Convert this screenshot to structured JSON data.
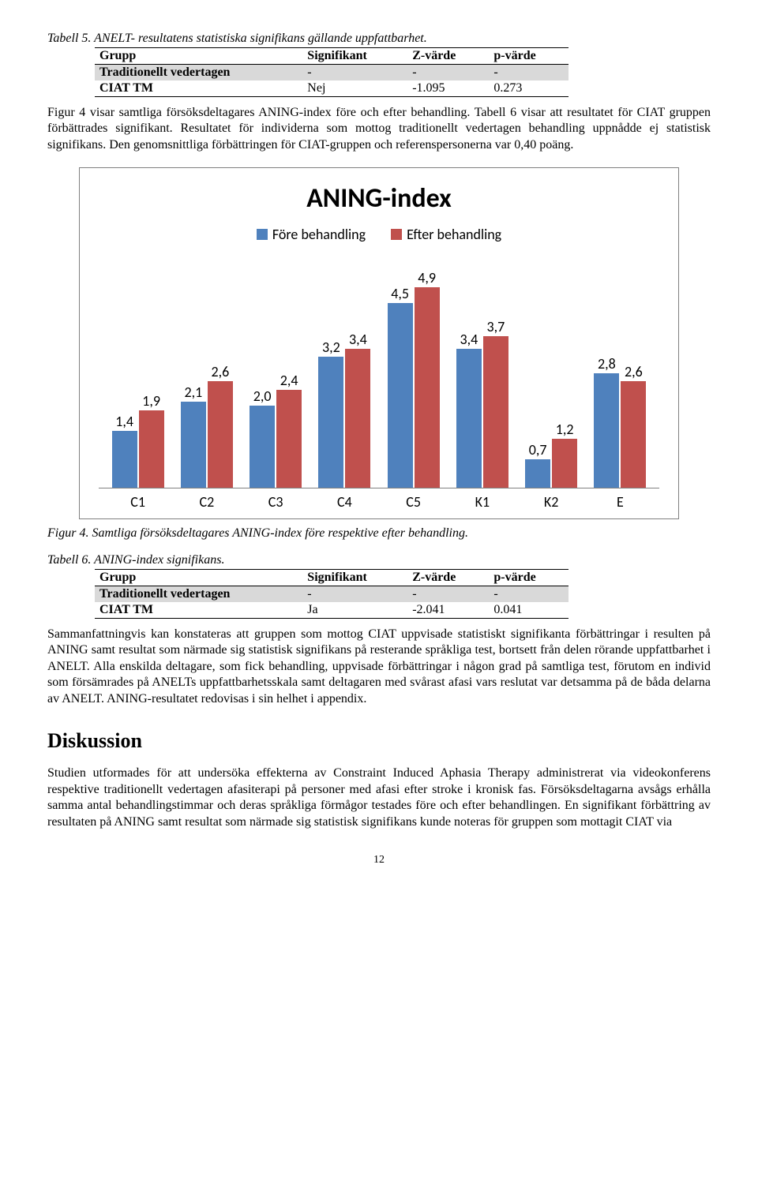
{
  "table5": {
    "caption": "Tabell 5. ANELT- resultatens statistiska signifikans gällande uppfattbarhet.",
    "columns": [
      "Grupp",
      "Signifikant",
      "Z-värde",
      "p-värde"
    ],
    "rows": [
      [
        "Traditionellt vedertagen",
        "-",
        "-",
        "-"
      ],
      [
        "CIAT TM",
        "Nej",
        "-1.095",
        "0.273"
      ]
    ]
  },
  "para1": "Figur 4 visar samtliga försöksdeltagares ANING-index före och efter behandling. Tabell 6 visar att resultatet för CIAT gruppen förbättrades signifikant. Resultatet för individerna som mottog traditionellt vedertagen behandling uppnådde ej statistisk signifikans. Den genomsnittliga förbättringen för CIAT-gruppen och referenspersonerna var 0,40 poäng.",
  "chart": {
    "title": "ANING-index",
    "legend": [
      "Före behandling",
      "Efter behandling"
    ],
    "colors": [
      "#4f81bd",
      "#c0504d"
    ],
    "ymax": 5.0,
    "categories": [
      "C1",
      "C2",
      "C3",
      "C4",
      "C5",
      "K1",
      "K2",
      "E"
    ],
    "series_before": [
      1.4,
      2.1,
      2.0,
      3.2,
      4.5,
      3.4,
      0.7,
      2.8
    ],
    "series_after": [
      1.9,
      2.6,
      2.4,
      3.4,
      4.9,
      3.7,
      1.2,
      2.6
    ],
    "labels_before": [
      "1,4",
      "2,1",
      "2,0",
      "3,2",
      "4,5",
      "3,4",
      "0,7",
      "2,8"
    ],
    "labels_after": [
      "1,9",
      "2,6",
      "2,4",
      "3,4",
      "4,9",
      "3,7",
      "1,2",
      "2,6"
    ]
  },
  "fig4_caption": "Figur 4. Samtliga försöksdeltagares ANING-index före respektive efter behandling.",
  "table6": {
    "caption": "Tabell 6. ANING-index signifikans.",
    "columns": [
      "Grupp",
      "Signifikant",
      "Z-värde",
      "p-värde"
    ],
    "rows": [
      [
        "Traditionellt vedertagen",
        "-",
        "-",
        "-"
      ],
      [
        "CIAT TM",
        "Ja",
        "-2.041",
        "0.041"
      ]
    ]
  },
  "para2": "Sammanfattningvis kan konstateras att gruppen som mottog CIAT uppvisade statistiskt signifikanta förbättringar i resulten på ANING samt resultat som närmade sig statistisk signifikans på resterande språkliga test, bortsett från delen rörande uppfattbarhet i ANELT. Alla enskilda deltagare, som fick behandling, uppvisade förbättringar i någon grad på samtliga test, förutom en individ som försämrades på ANELTs uppfattbarhetsskala samt deltagaren med svårast afasi vars reslutat var detsamma på de båda delarna av ANELT. ANING-resultatet redovisas i sin helhet i appendix.",
  "discussion_heading": "Diskussion",
  "para3": "Studien utformades för att undersöka effekterna av Constraint Induced Aphasia Therapy administrerat via videokonferens respektive traditionellt vedertagen afasiterapi på personer med afasi efter stroke i kronisk fas. Försöksdeltagarna avsågs erhålla samma antal behandlingstimmar och deras språkliga förmågor testades före och efter behandlingen. En signifikant förbättring av resultaten på ANING samt resultat som närmade sig statistisk signifikans kunde noteras för gruppen som mottagit CIAT via",
  "page_number": "12"
}
